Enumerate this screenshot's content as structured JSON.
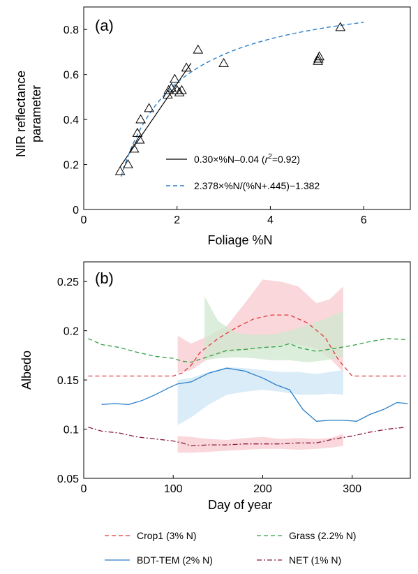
{
  "chart_data": [
    {
      "type": "scatter",
      "panel_label": "(a)",
      "xlabel": "Foliage %N",
      "ylabel_lines": [
        "NIR reflectance",
        "parameter"
      ],
      "xlim": [
        0,
        7
      ],
      "ylim": [
        0,
        0.9
      ],
      "xticks": [
        0,
        2,
        4,
        6
      ],
      "yticks": [
        0,
        0.2,
        0.4,
        0.6,
        0.8
      ],
      "ytick_labels": [
        "0",
        "0.2",
        "0.4",
        "0.6",
        "0.8"
      ],
      "grid": false,
      "legend_position": "bottom-center",
      "points": {
        "marker": "triangle",
        "x": [
          0.78,
          0.95,
          1.08,
          1.15,
          1.2,
          1.22,
          1.4,
          1.8,
          1.82,
          1.88,
          1.95,
          2.0,
          2.05,
          2.1,
          2.2,
          2.45,
          3.0,
          5.02,
          5.03,
          5.05,
          5.5
        ],
        "y": [
          0.17,
          0.2,
          0.27,
          0.34,
          0.31,
          0.4,
          0.45,
          0.51,
          0.53,
          0.54,
          0.58,
          0.53,
          0.52,
          0.53,
          0.63,
          0.71,
          0.65,
          0.66,
          0.67,
          0.68,
          0.81
        ]
      },
      "series": [
        {
          "name": "0.30×%N−0.04 (r²=0.92)",
          "legend_text": "0.30×%N‒0.04 (",
          "legend_r": "r",
          "legend_sup": "2",
          "legend_end": "=0.92)",
          "style": "solid",
          "color": "#000000",
          "x": [
            0.78,
            2.3
          ],
          "y": [
            0.19,
            0.65
          ]
        },
        {
          "name": "2.378×%N/(%N+.445)−1.382",
          "legend_text": "2.378×%N/(%N+.445)−1.382",
          "style": "dashed",
          "color": "#2a7fc9",
          "formula": "2.378*x/(x+0.445)-1.382",
          "x_range": [
            0.8,
            6.0
          ]
        }
      ]
    },
    {
      "type": "line",
      "panel_label": "(b)",
      "xlabel": "Day of year",
      "ylabel": "Albedo",
      "xlim": [
        0,
        365
      ],
      "ylim": [
        0.05,
        0.27
      ],
      "xticks": [
        0,
        100,
        200,
        300
      ],
      "yticks": [
        0.05,
        0.1,
        0.15,
        0.2,
        0.25
      ],
      "ytick_labels": [
        "0.05",
        "0.1",
        "0.15",
        "0.2",
        "0.25"
      ],
      "grid": false,
      "legend_position": "below-plot",
      "series": [
        {
          "name": "Crop1 (3% N)",
          "style": "dashed",
          "color": "#e03a3a",
          "x": [
            5,
            20,
            40,
            60,
            80,
            100,
            110,
            120,
            130,
            150,
            170,
            190,
            210,
            230,
            250,
            270,
            285,
            300,
            320,
            340,
            360
          ],
          "y": [
            0.154,
            0.154,
            0.154,
            0.154,
            0.154,
            0.154,
            0.157,
            0.165,
            0.178,
            0.192,
            0.203,
            0.212,
            0.216,
            0.216,
            0.208,
            0.193,
            0.17,
            0.154,
            0.154,
            0.154,
            0.154
          ],
          "band": {
            "color": "#f8c9cf",
            "x": [
              105,
              120,
              140,
              160,
              180,
              200,
              220,
              240,
              260,
              275,
              290
            ],
            "lower": [
              0.157,
              0.16,
              0.172,
              0.178,
              0.18,
              0.182,
              0.186,
              0.186,
              0.182,
              0.172,
              0.158
            ],
            "upper": [
              0.195,
              0.187,
              0.195,
              0.205,
              0.228,
              0.252,
              0.25,
              0.245,
              0.228,
              0.232,
              0.245
            ]
          }
        },
        {
          "name": "Grass (2.2% N)",
          "style": "dashed",
          "color": "#2ea043",
          "x": [
            5,
            20,
            40,
            60,
            80,
            100,
            110,
            120,
            140,
            160,
            180,
            200,
            220,
            230,
            240,
            260,
            280,
            300,
            320,
            340,
            360
          ],
          "y": [
            0.192,
            0.186,
            0.183,
            0.178,
            0.174,
            0.172,
            0.169,
            0.168,
            0.174,
            0.18,
            0.181,
            0.183,
            0.184,
            0.187,
            0.183,
            0.179,
            0.182,
            0.185,
            0.189,
            0.192,
            0.191
          ],
          "band": {
            "color": "#cfe8cf",
            "x": [
              135,
              150,
              170,
              190,
              210,
              230,
              250,
              270,
              290
            ],
            "lower": [
              0.17,
              0.172,
              0.173,
              0.172,
              0.17,
              0.17,
              0.168,
              0.17,
              0.173
            ],
            "upper": [
              0.235,
              0.21,
              0.198,
              0.196,
              0.196,
              0.2,
              0.206,
              0.212,
              0.22
            ]
          }
        },
        {
          "name": "BDT-TEM (2% N)",
          "style": "solid",
          "color": "#2a7fc9",
          "x": [
            20,
            35,
            50,
            65,
            80,
            95,
            105,
            120,
            140,
            160,
            180,
            200,
            215,
            230,
            245,
            260,
            275,
            290,
            305,
            320,
            335,
            350,
            362
          ],
          "y": [
            0.125,
            0.126,
            0.125,
            0.129,
            0.135,
            0.142,
            0.146,
            0.148,
            0.157,
            0.162,
            0.159,
            0.152,
            0.145,
            0.14,
            0.12,
            0.108,
            0.109,
            0.109,
            0.108,
            0.115,
            0.12,
            0.127,
            0.126
          ],
          "band": {
            "color": "#cde6f5",
            "x": [
              105,
              120,
              140,
              160,
              180,
              200,
              220,
              240,
              260,
              275,
              290
            ],
            "lower": [
              0.104,
              0.112,
              0.125,
              0.135,
              0.138,
              0.14,
              0.138,
              0.135,
              0.135,
              0.136,
              0.135
            ],
            "upper": [
              0.15,
              0.152,
              0.158,
              0.163,
              0.162,
              0.16,
              0.158,
              0.158,
              0.156,
              0.158,
              0.16
            ]
          }
        },
        {
          "name": "NET (1% N)",
          "style": "dashdot",
          "color": "#8b1a3a",
          "x": [
            5,
            20,
            40,
            60,
            80,
            100,
            110,
            120,
            140,
            160,
            180,
            200,
            220,
            240,
            260,
            280,
            300,
            320,
            340,
            360
          ],
          "y": [
            0.102,
            0.098,
            0.096,
            0.092,
            0.09,
            0.088,
            0.086,
            0.083,
            0.084,
            0.084,
            0.085,
            0.085,
            0.085,
            0.086,
            0.086,
            0.09,
            0.093,
            0.097,
            0.1,
            0.102
          ],
          "band": {
            "color": "#f8c9cf",
            "x": [
              105,
              120,
              140,
              160,
              180,
              200,
              220,
              240,
              260,
              275,
              290
            ],
            "lower": [
              0.076,
              0.076,
              0.077,
              0.078,
              0.079,
              0.08,
              0.08,
              0.079,
              0.08,
              0.081,
              0.083
            ],
            "upper": [
              0.093,
              0.092,
              0.09,
              0.089,
              0.091,
              0.092,
              0.09,
              0.091,
              0.09,
              0.091,
              0.095
            ]
          }
        }
      ]
    }
  ]
}
